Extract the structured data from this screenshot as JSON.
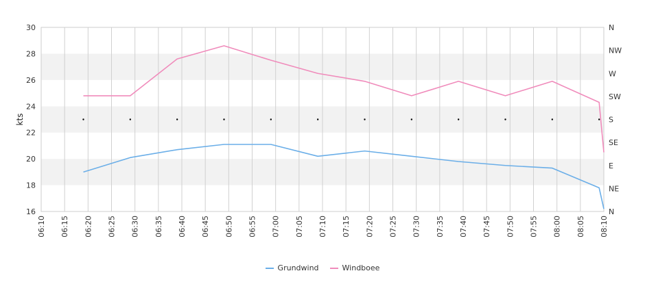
{
  "chart_data": {
    "type": "line",
    "ylabel": "kts",
    "ylim": [
      16,
      30
    ],
    "yticks": [
      "16",
      "18",
      "20",
      "22",
      "24",
      "26",
      "28",
      "30"
    ],
    "y2ticks": [
      "N",
      "NE",
      "E",
      "SE",
      "S",
      "SW",
      "W",
      "NW",
      "N"
    ],
    "xticks": [
      "06:10",
      "06:15",
      "06:20",
      "06:25",
      "06:30",
      "06:35",
      "06:40",
      "06:45",
      "06:50",
      "06:55",
      "07:00",
      "07:05",
      "07:10",
      "07:15",
      "07:20",
      "07:25",
      "07:30",
      "07:35",
      "07:40",
      "07:45",
      "07:50",
      "07:55",
      "08:00",
      "08:05",
      "08:10"
    ],
    "x": [
      "06:19",
      "06:29",
      "06:39",
      "06:49",
      "06:59",
      "07:09",
      "07:19",
      "07:29",
      "07:39",
      "07:49",
      "07:59",
      "08:09",
      "08:10"
    ],
    "series": [
      {
        "name": "Grundwind",
        "color": "#6aaee8",
        "values": [
          19.0,
          20.1,
          20.7,
          21.1,
          21.1,
          20.2,
          20.6,
          20.2,
          19.8,
          19.5,
          19.3,
          17.8,
          16.2
        ]
      },
      {
        "name": "Windboee",
        "color": "#f08bbb",
        "values": [
          24.8,
          24.8,
          27.6,
          28.6,
          27.5,
          26.5,
          25.9,
          24.8,
          25.9,
          24.8,
          25.9,
          24.3,
          20.5
        ]
      }
    ],
    "direction_markers": [
      "06:19",
      "06:29",
      "06:39",
      "06:49",
      "06:59",
      "07:09",
      "07:19",
      "07:29",
      "07:39",
      "07:49",
      "07:59",
      "08:09"
    ],
    "direction_level": "S",
    "grid": true,
    "banded_background": true,
    "legend_position": "bottom-center"
  }
}
